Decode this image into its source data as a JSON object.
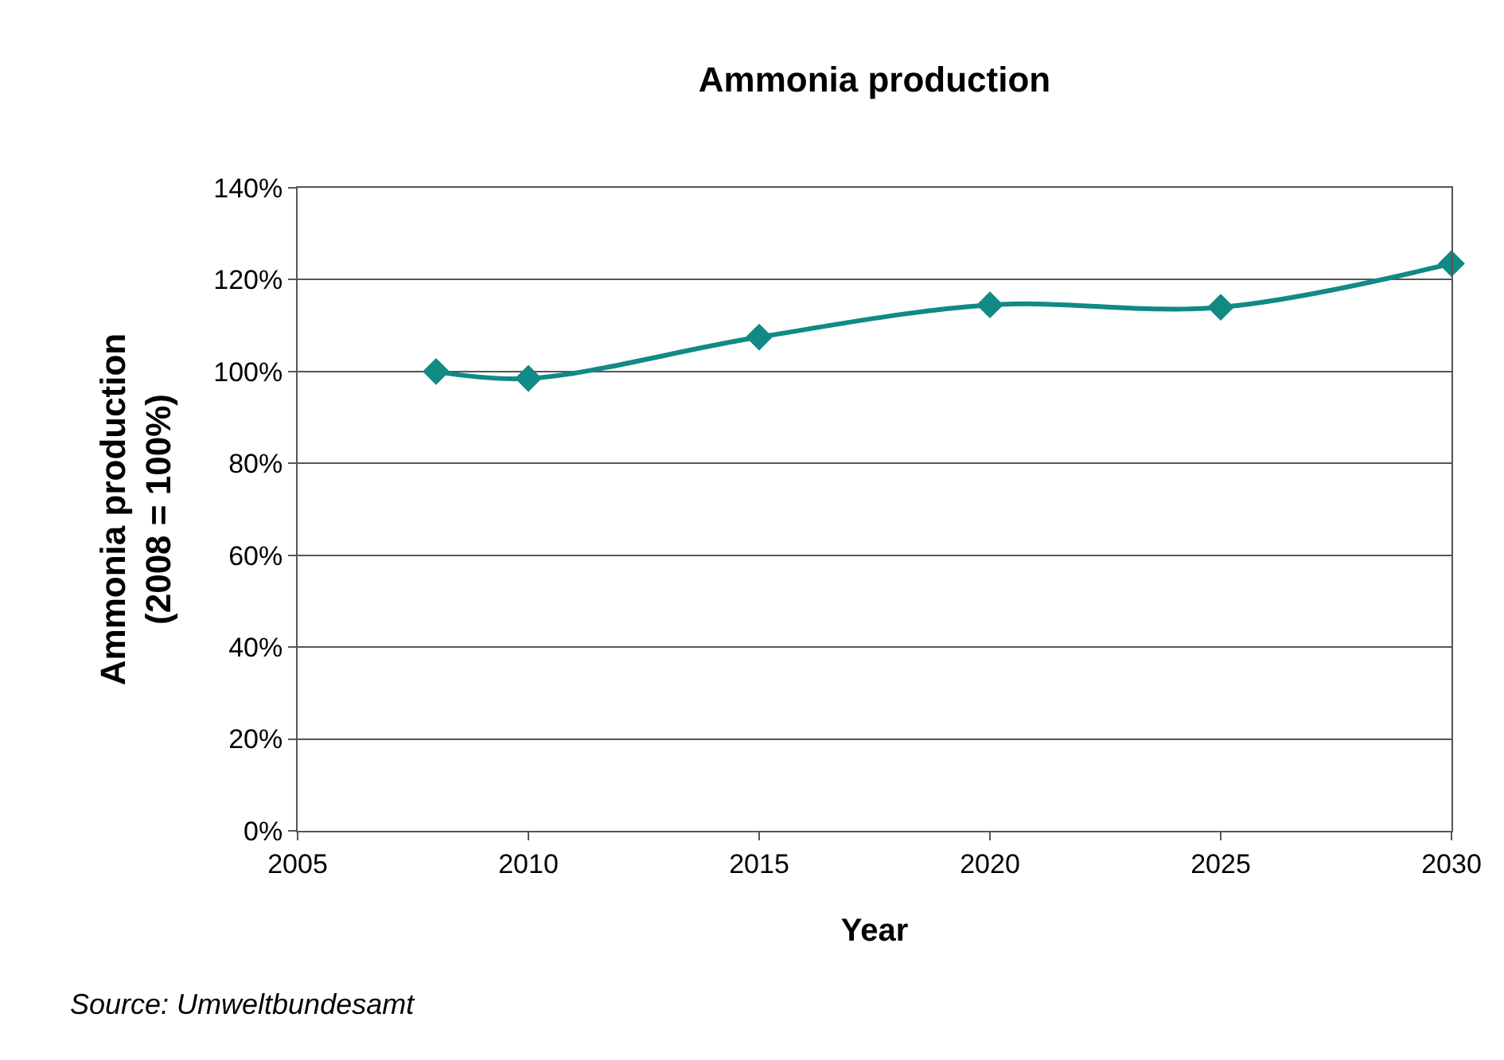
{
  "chart_data": {
    "type": "line",
    "title": "Ammonia production",
    "xlabel": "Year",
    "ylabel": "Ammonia production\n(2008 = 100%)",
    "x": [
      2008,
      2010,
      2015,
      2020,
      2025,
      2030
    ],
    "series": [
      {
        "color": "#108a85",
        "values": [
          100,
          98.5,
          107.5,
          114.5,
          114,
          123.5
        ]
      }
    ],
    "xlim": [
      2005,
      2030
    ],
    "xticks": [
      2005,
      2010,
      2015,
      2020,
      2025,
      2030
    ],
    "ylim": [
      0,
      140
    ],
    "yticks": [
      {
        "value": 0,
        "label": "0%"
      },
      {
        "value": 20,
        "label": "20%"
      },
      {
        "value": 40,
        "label": "40%"
      },
      {
        "value": 60,
        "label": "60%"
      },
      {
        "value": 80,
        "label": "80%"
      },
      {
        "value": 100,
        "label": "100%"
      },
      {
        "value": 120,
        "label": "120%"
      },
      {
        "value": 140,
        "label": "140%"
      }
    ],
    "grid": "y",
    "legend": false,
    "marker": "diamond",
    "line_style": "solid",
    "annotations": [
      "Source: Umweltbundesamt"
    ]
  }
}
